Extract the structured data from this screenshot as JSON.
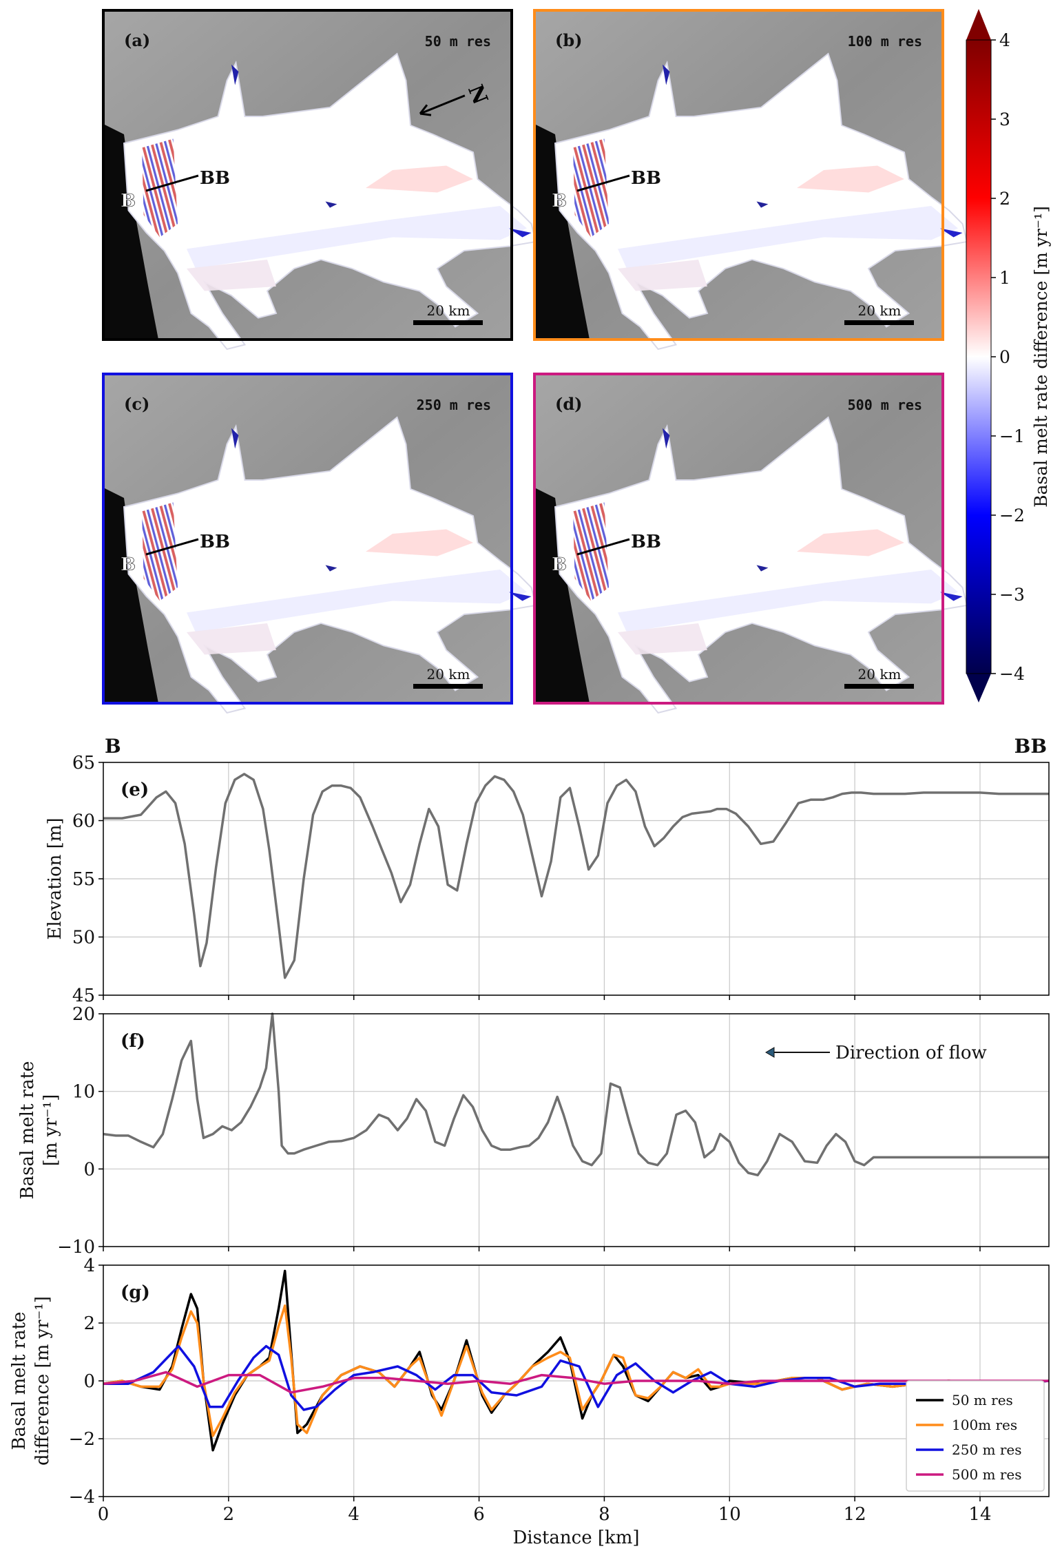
{
  "maps": [
    {
      "id": "a",
      "label": "(a)",
      "res": "50 m res",
      "border": "#000000",
      "show_north": true
    },
    {
      "id": "b",
      "label": "(b)",
      "res": "100 m res",
      "border": "#ff8c1a",
      "show_north": false
    },
    {
      "id": "c",
      "label": "(c)",
      "res": "250 m res",
      "border": "#1010e0",
      "show_north": false
    },
    {
      "id": "d",
      "label": "(d)",
      "res": "500 m res",
      "border": "#cc1a80",
      "show_north": false
    }
  ],
  "map_text": {
    "scalebar": "20 km",
    "point_start": "B",
    "point_end": "BB",
    "north": "N"
  },
  "colorbar": {
    "label": "Basal melt rate difference [m yr⁻¹]",
    "min": -4,
    "max": 4,
    "ticks": [
      4,
      3,
      2,
      1,
      0,
      -1,
      -2,
      -3,
      -4
    ],
    "tick_labels": [
      "4",
      "3",
      "2",
      "1",
      "0",
      "−1",
      "−2",
      "−3",
      "−4"
    ],
    "cmap": "seismic"
  },
  "profile_header": {
    "left": "B",
    "right": "BB"
  },
  "chart_data": [
    {
      "panel": "(e)",
      "type": "line",
      "xlabel": "",
      "ylabel": "Elevation [m]",
      "xlim": [
        0,
        15.1
      ],
      "ylim": [
        45,
        65
      ],
      "yticks": [
        45,
        50,
        55,
        60,
        65
      ],
      "xticks": [
        0,
        2,
        4,
        6,
        8,
        10,
        12,
        14
      ],
      "grid": true,
      "series": [
        {
          "color": "#707070",
          "x": [
            0,
            0.3,
            0.6,
            0.85,
            1.0,
            1.15,
            1.3,
            1.45,
            1.55,
            1.65,
            1.8,
            1.95,
            2.1,
            2.25,
            2.4,
            2.55,
            2.65,
            2.8,
            2.9,
            3.05,
            3.2,
            3.35,
            3.5,
            3.65,
            3.8,
            3.95,
            4.1,
            4.3,
            4.45,
            4.6,
            4.75,
            4.9,
            5.05,
            5.2,
            5.35,
            5.5,
            5.65,
            5.8,
            5.95,
            6.1,
            6.25,
            6.4,
            6.55,
            6.7,
            6.85,
            7.0,
            7.15,
            7.3,
            7.45,
            7.6,
            7.75,
            7.9,
            8.05,
            8.2,
            8.35,
            8.5,
            8.65,
            8.8,
            8.95,
            9.1,
            9.25,
            9.4,
            9.55,
            9.7,
            9.8,
            9.95,
            10.1,
            10.3,
            10.5,
            10.7,
            10.9,
            11.1,
            11.3,
            11.5,
            11.65,
            11.8,
            11.95,
            12.1,
            12.3,
            12.5,
            12.8,
            13.1,
            13.4,
            13.7,
            14.0,
            14.3,
            14.6,
            14.9,
            15.1
          ],
          "y": [
            60.2,
            60.2,
            60.5,
            62.0,
            62.5,
            61.5,
            58.0,
            52.0,
            47.5,
            49.5,
            56.0,
            61.5,
            63.5,
            64.0,
            63.5,
            61.0,
            57.5,
            51.0,
            46.5,
            48.0,
            55.0,
            60.5,
            62.5,
            63.0,
            63.0,
            62.8,
            62.0,
            59.5,
            57.5,
            55.5,
            53.0,
            54.5,
            58.0,
            61.0,
            59.5,
            54.5,
            54.0,
            58.0,
            61.5,
            63.0,
            63.8,
            63.5,
            62.5,
            60.5,
            57.0,
            53.5,
            56.5,
            62.0,
            62.8,
            59.5,
            55.8,
            57.0,
            61.5,
            63.0,
            63.5,
            62.5,
            59.5,
            57.8,
            58.5,
            59.5,
            60.3,
            60.6,
            60.7,
            60.8,
            61.0,
            61.0,
            60.6,
            59.5,
            58.0,
            58.2,
            59.8,
            61.5,
            61.8,
            61.8,
            62.0,
            62.3,
            62.4,
            62.4,
            62.3,
            62.3,
            62.3,
            62.4,
            62.4,
            62.4,
            62.4,
            62.3,
            62.3,
            62.3,
            62.3
          ]
        }
      ]
    },
    {
      "panel": "(f)",
      "type": "line",
      "xlabel": "",
      "ylabel": "Basal melt rate [m yr⁻¹]",
      "xlim": [
        0,
        15.1
      ],
      "ylim": [
        -10,
        20
      ],
      "yticks": [
        -10,
        0,
        10,
        20
      ],
      "xticks": [
        0,
        2,
        4,
        6,
        8,
        10,
        12,
        14
      ],
      "grid": true,
      "annotation": "Direction of flow",
      "series": [
        {
          "color": "#707070",
          "x": [
            0,
            0.2,
            0.4,
            0.6,
            0.8,
            0.95,
            1.1,
            1.25,
            1.4,
            1.5,
            1.6,
            1.75,
            1.9,
            2.05,
            2.2,
            2.35,
            2.5,
            2.6,
            2.7,
            2.8,
            2.85,
            2.95,
            3.05,
            3.2,
            3.4,
            3.6,
            3.8,
            4.0,
            4.2,
            4.4,
            4.55,
            4.7,
            4.85,
            5.0,
            5.15,
            5.3,
            5.45,
            5.6,
            5.75,
            5.9,
            6.05,
            6.2,
            6.35,
            6.5,
            6.65,
            6.8,
            6.95,
            7.1,
            7.25,
            7.35,
            7.5,
            7.65,
            7.8,
            7.95,
            8.1,
            8.25,
            8.4,
            8.55,
            8.7,
            8.85,
            9.0,
            9.15,
            9.3,
            9.45,
            9.6,
            9.75,
            9.85,
            10.0,
            10.15,
            10.3,
            10.45,
            10.6,
            10.8,
            11.0,
            11.2,
            11.4,
            11.55,
            11.7,
            11.85,
            12.0,
            12.15,
            12.3,
            12.5,
            12.7,
            12.9,
            13.1,
            13.3,
            13.5,
            13.8,
            14.1,
            14.4,
            14.7,
            15.0,
            15.1
          ],
          "y": [
            4.5,
            4.3,
            4.3,
            3.5,
            2.8,
            4.5,
            9.0,
            14.0,
            16.5,
            9.0,
            4.0,
            4.5,
            5.5,
            5.0,
            6.0,
            8.0,
            10.5,
            13.0,
            20.0,
            10.0,
            3.0,
            2.0,
            2.0,
            2.5,
            3.0,
            3.5,
            3.6,
            4.0,
            5.0,
            7.0,
            6.5,
            5.0,
            6.5,
            9.0,
            7.5,
            3.5,
            3.0,
            6.5,
            9.5,
            8.0,
            5.0,
            3.0,
            2.5,
            2.5,
            2.8,
            3.0,
            4.0,
            6.0,
            9.3,
            7.0,
            3.0,
            1.0,
            0.5,
            2.0,
            11.0,
            10.5,
            6.0,
            2.0,
            0.8,
            0.5,
            2.0,
            7.0,
            7.5,
            6.0,
            1.5,
            2.5,
            4.5,
            3.5,
            0.8,
            -0.5,
            -0.8,
            1.0,
            4.5,
            3.5,
            1.0,
            0.8,
            3.0,
            4.5,
            3.5,
            1.0,
            0.5,
            1.5,
            1.5,
            1.5,
            1.5,
            1.5,
            1.5,
            1.5,
            1.5,
            1.5,
            1.5,
            1.5,
            1.5,
            1.5
          ]
        }
      ]
    },
    {
      "panel": "(g)",
      "type": "line",
      "xlabel": "Distance [km]",
      "ylabel": "Basal melt rate difference [m yr⁻¹]",
      "xlim": [
        0,
        15.1
      ],
      "ylim": [
        -4,
        4
      ],
      "yticks": [
        -4,
        -2,
        0,
        2,
        4
      ],
      "xticks": [
        0,
        2,
        4,
        6,
        8,
        10,
        12,
        14
      ],
      "grid": true,
      "legend": "bottom-right",
      "series": [
        {
          "name": "50 m res",
          "color": "#000000",
          "x": [
            0,
            0.3,
            0.6,
            0.9,
            1.1,
            1.25,
            1.4,
            1.5,
            1.6,
            1.75,
            1.9,
            2.1,
            2.3,
            2.5,
            2.65,
            2.8,
            2.9,
            3.0,
            3.1,
            3.25,
            3.5,
            3.8,
            4.1,
            4.4,
            4.65,
            4.9,
            5.05,
            5.25,
            5.4,
            5.6,
            5.8,
            6.05,
            6.2,
            6.4,
            6.6,
            6.85,
            7.1,
            7.3,
            7.45,
            7.65,
            7.8,
            7.95,
            8.15,
            8.3,
            8.5,
            8.7,
            8.9,
            9.1,
            9.3,
            9.5,
            9.7,
            9.85,
            10.0,
            10.5,
            11.0,
            11.4,
            11.8,
            12.2,
            12.6,
            13.0,
            13.5,
            14.0,
            14.5,
            15.1
          ],
          "y": [
            -0.1,
            0.0,
            -0.2,
            -0.3,
            0.5,
            1.8,
            3.0,
            2.5,
            0.0,
            -2.4,
            -1.5,
            -0.5,
            0.2,
            0.5,
            0.8,
            2.5,
            3.8,
            1.0,
            -1.8,
            -1.5,
            -0.5,
            0.2,
            0.5,
            0.3,
            -0.2,
            0.5,
            1.0,
            -0.5,
            -1.0,
            0.0,
            1.4,
            -0.5,
            -1.1,
            -0.5,
            -0.1,
            0.5,
            1.0,
            1.5,
            0.7,
            -1.3,
            -0.5,
            0.0,
            0.9,
            0.5,
            -0.5,
            -0.7,
            -0.2,
            0.3,
            0.1,
            0.2,
            -0.3,
            -0.2,
            0.0,
            -0.1,
            0.1,
            0.1,
            -0.3,
            -0.1,
            -0.2,
            -0.1,
            0.0,
            -0.1,
            -0.1,
            0.0
          ]
        },
        {
          "name": "100m res",
          "color": "#ff8c1a",
          "x": [
            0,
            0.3,
            0.6,
            0.9,
            1.1,
            1.25,
            1.4,
            1.5,
            1.6,
            1.75,
            1.9,
            2.1,
            2.3,
            2.5,
            2.65,
            2.8,
            2.9,
            3.0,
            3.1,
            3.25,
            3.5,
            3.8,
            4.1,
            4.4,
            4.65,
            4.9,
            5.05,
            5.25,
            5.4,
            5.6,
            5.8,
            6.05,
            6.2,
            6.4,
            6.6,
            6.85,
            7.1,
            7.3,
            7.45,
            7.65,
            7.8,
            7.95,
            8.15,
            8.3,
            8.5,
            8.7,
            8.9,
            9.1,
            9.3,
            9.5,
            9.7,
            9.85,
            10.0,
            10.5,
            11.0,
            11.4,
            11.8,
            12.2,
            12.6,
            13.0,
            13.5,
            14.0,
            14.5,
            15.1
          ],
          "y": [
            -0.1,
            0.0,
            -0.2,
            -0.2,
            0.4,
            1.5,
            2.4,
            2.0,
            0.0,
            -1.9,
            -1.3,
            -0.4,
            0.2,
            0.5,
            0.7,
            1.9,
            2.6,
            0.8,
            -1.5,
            -1.8,
            -0.5,
            0.2,
            0.5,
            0.3,
            -0.2,
            0.5,
            0.8,
            -0.4,
            -1.2,
            0.0,
            1.2,
            -0.4,
            -1.0,
            -0.5,
            -0.1,
            0.5,
            0.8,
            1.0,
            0.8,
            -1.0,
            -0.5,
            0.0,
            0.9,
            0.8,
            -0.5,
            -0.6,
            -0.2,
            0.3,
            0.1,
            0.4,
            -0.2,
            -0.2,
            -0.1,
            -0.1,
            0.1,
            0.1,
            -0.3,
            -0.1,
            -0.2,
            -0.1,
            0.0,
            -0.1,
            -0.1,
            0.0
          ]
        },
        {
          "name": "250 m res",
          "color": "#1010e0",
          "x": [
            0,
            0.4,
            0.8,
            1.2,
            1.45,
            1.7,
            1.9,
            2.15,
            2.4,
            2.6,
            2.8,
            3.0,
            3.2,
            3.4,
            3.7,
            4.0,
            4.3,
            4.7,
            5.0,
            5.3,
            5.6,
            5.9,
            6.2,
            6.6,
            7.0,
            7.3,
            7.6,
            7.9,
            8.2,
            8.5,
            8.8,
            9.1,
            9.4,
            9.7,
            10.0,
            10.4,
            10.8,
            11.2,
            11.6,
            12.0,
            12.4,
            12.8,
            13.2,
            13.6,
            14.0,
            14.5,
            15.1
          ],
          "y": [
            -0.1,
            -0.1,
            0.3,
            1.2,
            0.5,
            -0.9,
            -0.9,
            0.0,
            0.8,
            1.2,
            0.9,
            -0.5,
            -1.0,
            -0.9,
            -0.3,
            0.2,
            0.3,
            0.5,
            0.2,
            -0.3,
            0.2,
            0.2,
            -0.4,
            -0.5,
            -0.2,
            0.7,
            0.5,
            -0.9,
            0.2,
            0.6,
            0.0,
            -0.4,
            0.0,
            0.3,
            -0.1,
            -0.2,
            0.0,
            0.1,
            0.1,
            -0.2,
            -0.1,
            -0.1,
            -0.1,
            -0.1,
            -0.1,
            -0.1,
            0.0
          ]
        },
        {
          "name": "500 m res",
          "color": "#cc1a80",
          "x": [
            0,
            0.5,
            1.0,
            1.5,
            2.0,
            2.5,
            3.0,
            3.5,
            4.0,
            4.5,
            5.0,
            5.5,
            6.0,
            6.5,
            7.0,
            7.5,
            8.0,
            8.5,
            9.0,
            9.5,
            10.0,
            10.5,
            11.0,
            11.5,
            12.0,
            12.5,
            13.0,
            13.5,
            14.0,
            14.5,
            15.1
          ],
          "y": [
            -0.1,
            0.0,
            0.3,
            -0.2,
            0.2,
            0.2,
            -0.4,
            -0.2,
            0.1,
            0.1,
            0.0,
            -0.1,
            0.0,
            -0.1,
            0.2,
            0.1,
            -0.1,
            0.0,
            0.0,
            0.0,
            -0.1,
            0.0,
            0.0,
            0.0,
            0.0,
            0.0,
            0.0,
            0.0,
            0.0,
            0.0,
            0.0
          ]
        }
      ]
    }
  ]
}
